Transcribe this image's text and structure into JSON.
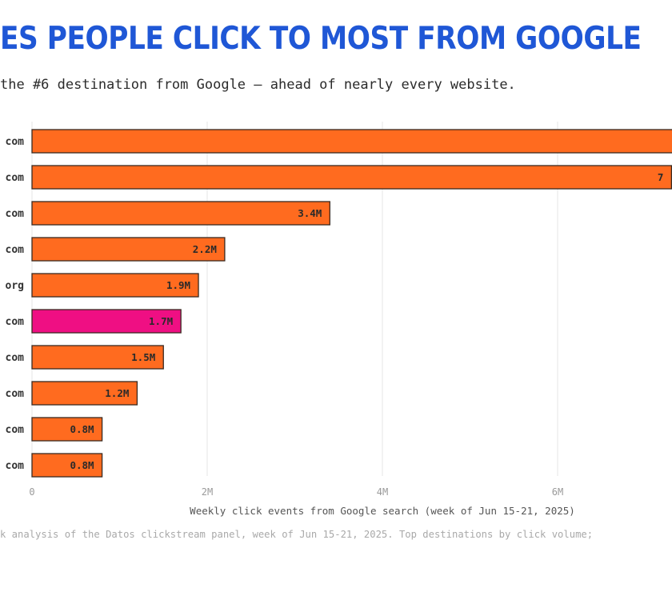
{
  "header": {
    "title": "ES PEOPLE CLICK TO MOST FROM GOOGLE",
    "subtitle": "the #6 destination from Google — ahead of nearly every website."
  },
  "footnote": "k analysis of the Datos clickstream panel, week of Jun 15-21, 2025. Top destinations by click volume;",
  "colors": {
    "bar": "#ff6b1f",
    "highlight": "#ef0f83",
    "bar_stroke": "#3a2a20",
    "grid": "#e6e6e6",
    "title": "#1f57d6"
  },
  "chart_data": {
    "type": "bar",
    "orientation": "horizontal",
    "xlabel": "Weekly click events from Google search (week of Jun 15-21, 2025)",
    "xlim": [
      0,
      7.3
    ],
    "x_ticks": [
      0,
      2,
      4,
      6
    ],
    "x_tick_labels": [
      "0",
      "2M",
      "4M",
      "6M"
    ],
    "grid": true,
    "categories": [
      "com",
      "com",
      "com",
      "com",
      "org",
      "com",
      "com",
      "com",
      "com",
      "com"
    ],
    "values": [
      7.5,
      7.3,
      3.4,
      2.2,
      1.9,
      1.7,
      1.5,
      1.2,
      0.8,
      0.8
    ],
    "value_labels": [
      "",
      "7",
      "3.4M",
      "2.2M",
      "1.9M",
      "1.7M",
      "1.5M",
      "1.2M",
      "0.8M",
      "0.8M"
    ],
    "highlight_index": 5
  }
}
